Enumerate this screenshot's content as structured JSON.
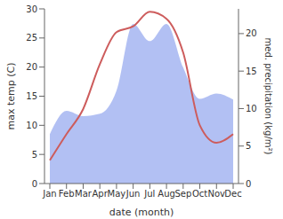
{
  "chart_data": {
    "type": "composed",
    "categories": [
      "Jan",
      "Feb",
      "Mar",
      "Apr",
      "May",
      "Jun",
      "Jul",
      "Aug",
      "Sep",
      "Oct",
      "Nov",
      "Dec"
    ],
    "x_label": "date (month)",
    "y_label": "max temp (C)",
    "y2_label": "med. precipitation (kg/m²)",
    "ylim": [
      0,
      30
    ],
    "yticks": [
      0,
      5,
      10,
      15,
      20,
      25,
      30
    ],
    "y2lim": [
      0,
      23.3
    ],
    "y2ticks": [
      0,
      5,
      10,
      15,
      20
    ],
    "grid": false,
    "series": [
      {
        "name": "med. precipitation",
        "type": "area",
        "axis": "y2",
        "color": "#aab9f2",
        "values": [
          6.6,
          9.7,
          9,
          9.3,
          12.4,
          21.3,
          19,
          21.3,
          15.5,
          11.3,
          12,
          11.2
        ]
      },
      {
        "name": "max temp",
        "type": "line",
        "axis": "y",
        "color": "#cd5c5c",
        "values": [
          4,
          8.5,
          12.8,
          20.5,
          26,
          27,
          29.5,
          28.3,
          22.5,
          10,
          7,
          8.5
        ]
      }
    ]
  }
}
